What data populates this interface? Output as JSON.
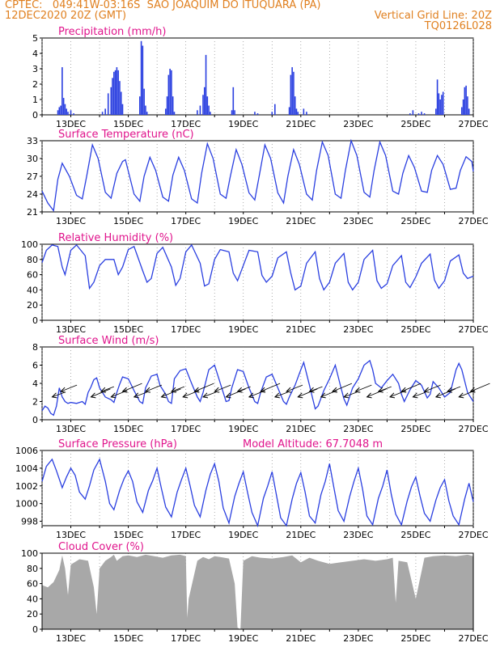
{
  "header": {
    "line1_left": "CPTEC:   049:41W-03:16S  SAO JOAQUIM DO ITUQUARA (PA)",
    "line2_left": "12DEC2020 20Z (GMT)",
    "line2_right": "Vertical Grid Line: 20Z",
    "line3_right": "TQ0126L028"
  },
  "colors": {
    "title": "#e0148c",
    "header": "#e08020",
    "line": "#2a3fe0",
    "cloud": "#a8a8a8"
  },
  "chart_data": [
    {
      "id": "precip",
      "type": "bar",
      "title": "Precipitation (mm/h)",
      "xlabel": "",
      "ylabel": "",
      "xlim": [
        12,
        27
      ],
      "ylim": [
        0,
        5
      ],
      "yticks": [
        0,
        1,
        2,
        3,
        4,
        5
      ],
      "xticks": [
        "13DEC",
        "15DEC",
        "17DEC",
        "19DEC",
        "21DEC",
        "23DEC",
        "25DEC",
        "27DEC"
      ],
      "x": [
        12.55,
        12.6,
        12.65,
        12.7,
        12.75,
        12.8,
        12.85,
        12.9,
        13.0,
        13.1,
        14.1,
        14.2,
        14.3,
        14.4,
        14.45,
        14.5,
        14.55,
        14.6,
        14.65,
        14.7,
        14.75,
        14.8,
        15.4,
        15.45,
        15.5,
        15.55,
        15.6,
        15.65,
        16.3,
        16.35,
        16.4,
        16.45,
        16.5,
        16.55,
        16.6,
        17.4,
        17.5,
        17.6,
        17.65,
        17.7,
        17.75,
        17.8,
        17.85,
        18.6,
        18.65,
        18.7,
        19.4,
        19.5,
        20.0,
        20.1,
        20.6,
        20.65,
        20.7,
        20.75,
        20.8,
        20.85,
        20.9,
        21.1,
        21.2,
        24.8,
        24.9,
        25.1,
        25.2,
        25.3,
        25.7,
        25.75,
        25.8,
        25.85,
        25.9,
        25.95,
        26.6,
        26.65,
        26.7,
        26.75,
        26.8,
        26.85
      ],
      "values": [
        0.3,
        0.5,
        0.6,
        3.1,
        1.1,
        0.7,
        0.4,
        0.2,
        0.3,
        0.1,
        0.2,
        0.4,
        1.4,
        1.8,
        2.4,
        2.8,
        2.9,
        3.1,
        2.9,
        2.2,
        1.5,
        0.7,
        1.2,
        4.8,
        4.5,
        1.7,
        0.6,
        0.2,
        0.4,
        1.2,
        2.6,
        3.0,
        2.9,
        1.2,
        0.2,
        0.3,
        0.6,
        1.3,
        1.8,
        3.9,
        1.2,
        0.6,
        0.2,
        0.3,
        1.8,
        0.3,
        0.2,
        0.1,
        0.2,
        0.7,
        0.5,
        2.6,
        3.1,
        2.8,
        1.2,
        0.4,
        0.2,
        0.4,
        0.2,
        0.1,
        0.3,
        0.1,
        0.2,
        0.1,
        0.4,
        2.3,
        1.4,
        1.0,
        1.3,
        1.5,
        0.5,
        1.0,
        1.8,
        1.9,
        1.2,
        0.4
      ]
    },
    {
      "id": "temp",
      "type": "line",
      "title": "Surface Temperature (nC)",
      "xlim": [
        12,
        27
      ],
      "ylim": [
        21,
        33
      ],
      "yticks": [
        21,
        24,
        27,
        30,
        33
      ],
      "xticks": [
        "13DEC",
        "15DEC",
        "17DEC",
        "19DEC",
        "21DEC",
        "23DEC",
        "25DEC",
        "27DEC"
      ],
      "x": [
        12.0,
        12.2,
        12.4,
        12.55,
        12.7,
        12.95,
        13.2,
        13.4,
        13.55,
        13.75,
        13.95,
        14.2,
        14.4,
        14.6,
        14.8,
        14.9,
        15.2,
        15.4,
        15.55,
        15.75,
        15.95,
        16.2,
        16.4,
        16.55,
        16.75,
        16.95,
        17.2,
        17.4,
        17.55,
        17.75,
        17.95,
        18.2,
        18.4,
        18.55,
        18.75,
        18.95,
        19.2,
        19.4,
        19.55,
        19.75,
        19.95,
        20.2,
        20.4,
        20.55,
        20.75,
        20.95,
        21.2,
        21.4,
        21.55,
        21.75,
        21.95,
        22.2,
        22.4,
        22.55,
        22.75,
        22.95,
        23.2,
        23.4,
        23.55,
        23.75,
        23.95,
        24.2,
        24.4,
        24.55,
        24.75,
        24.95,
        25.2,
        25.4,
        25.55,
        25.75,
        25.95,
        26.2,
        26.4,
        26.55,
        26.75,
        26.95,
        27.0
      ],
      "values": [
        24.5,
        22.5,
        21.2,
        26.5,
        29.2,
        27.0,
        23.8,
        23.2,
        27.0,
        32.3,
        30.0,
        24.3,
        23.3,
        27.5,
        29.5,
        29.8,
        24.0,
        22.8,
        27.0,
        30.2,
        28.0,
        23.5,
        22.8,
        27.2,
        30.2,
        28.0,
        23.2,
        22.5,
        27.5,
        32.5,
        30.0,
        24.0,
        23.3,
        27.0,
        31.5,
        29.0,
        24.2,
        23.0,
        27.0,
        32.3,
        30.0,
        24.2,
        22.5,
        27.0,
        31.5,
        29.0,
        24.0,
        23.0,
        28.0,
        32.8,
        30.5,
        24.0,
        23.3,
        28.0,
        33.0,
        30.5,
        24.3,
        23.5,
        28.0,
        32.8,
        30.5,
        24.5,
        24.0,
        27.5,
        30.5,
        28.5,
        24.5,
        24.3,
        28.0,
        30.5,
        29.0,
        24.8,
        25.0,
        28.0,
        30.3,
        29.5,
        27.8
      ]
    },
    {
      "id": "rh",
      "type": "line",
      "title": "Relative Humidity (%)",
      "xlim": [
        12,
        27
      ],
      "ylim": [
        0,
        100
      ],
      "yticks": [
        0,
        20,
        40,
        60,
        80,
        100
      ],
      "xticks": [
        "13DEC",
        "15DEC",
        "17DEC",
        "19DEC",
        "21DEC",
        "23DEC",
        "25DEC",
        "27DEC"
      ],
      "x": [
        12.0,
        12.15,
        12.35,
        12.55,
        12.7,
        12.8,
        13.0,
        13.2,
        13.5,
        13.65,
        13.8,
        14.0,
        14.2,
        14.5,
        14.65,
        14.8,
        15.0,
        15.2,
        15.5,
        15.65,
        15.8,
        16.0,
        16.2,
        16.5,
        16.65,
        16.8,
        17.0,
        17.2,
        17.5,
        17.65,
        17.8,
        18.0,
        18.2,
        18.5,
        18.65,
        18.8,
        19.0,
        19.2,
        19.5,
        19.65,
        19.8,
        20.0,
        20.2,
        20.5,
        20.65,
        20.8,
        21.0,
        21.2,
        21.5,
        21.65,
        21.8,
        22.0,
        22.2,
        22.5,
        22.65,
        22.8,
        23.0,
        23.2,
        23.5,
        23.65,
        23.8,
        24.0,
        24.2,
        24.5,
        24.65,
        24.8,
        25.0,
        25.2,
        25.5,
        25.65,
        25.8,
        26.0,
        26.2,
        26.5,
        26.65,
        26.8,
        27.0
      ],
      "values": [
        76,
        92,
        99,
        97,
        70,
        60,
        92,
        99,
        85,
        42,
        50,
        72,
        80,
        80,
        60,
        70,
        93,
        97,
        65,
        50,
        55,
        88,
        96,
        70,
        46,
        55,
        90,
        99,
        75,
        45,
        48,
        80,
        93,
        90,
        62,
        52,
        72,
        92,
        90,
        59,
        50,
        58,
        82,
        90,
        62,
        40,
        45,
        75,
        90,
        55,
        40,
        50,
        75,
        88,
        50,
        40,
        50,
        80,
        92,
        52,
        42,
        48,
        72,
        85,
        50,
        43,
        57,
        75,
        87,
        53,
        42,
        52,
        78,
        86,
        62,
        55,
        58
      ]
    },
    {
      "id": "wind",
      "type": "line",
      "title": "Surface Wind (m/s)",
      "xlim": [
        12,
        27
      ],
      "ylim": [
        0,
        8
      ],
      "yticks": [
        0,
        2,
        4,
        6,
        8
      ],
      "xticks": [
        "13DEC",
        "15DEC",
        "17DEC",
        "19DEC",
        "21DEC",
        "23DEC",
        "25DEC",
        "27DEC"
      ],
      "x": [
        12.0,
        12.1,
        12.2,
        12.3,
        12.4,
        12.5,
        12.6,
        12.7,
        12.8,
        12.9,
        13.0,
        13.2,
        13.4,
        13.5,
        13.6,
        13.7,
        13.8,
        13.9,
        14.0,
        14.2,
        14.4,
        14.5,
        14.6,
        14.7,
        14.8,
        15.0,
        15.2,
        15.4,
        15.5,
        15.6,
        15.8,
        16.0,
        16.1,
        16.3,
        16.4,
        16.5,
        16.6,
        16.8,
        17.0,
        17.2,
        17.4,
        17.5,
        17.6,
        17.8,
        18.0,
        18.1,
        18.3,
        18.4,
        18.5,
        18.6,
        18.8,
        19.0,
        19.2,
        19.4,
        19.5,
        19.6,
        19.8,
        20.0,
        20.2,
        20.4,
        20.5,
        20.6,
        20.8,
        21.0,
        21.1,
        21.3,
        21.4,
        21.5,
        21.6,
        21.8,
        22.0,
        22.2,
        22.4,
        22.5,
        22.6,
        22.8,
        23.0,
        23.2,
        23.4,
        23.5,
        23.6,
        23.8,
        24.0,
        24.2,
        24.4,
        24.5,
        24.6,
        24.8,
        25.0,
        25.2,
        25.4,
        25.5,
        25.6,
        25.8,
        26.0,
        26.2,
        26.4,
        26.5,
        26.6,
        26.8,
        27.0
      ],
      "values": [
        1.0,
        1.5,
        1.3,
        0.7,
        0.5,
        1.5,
        3.5,
        2.5,
        2.0,
        1.8,
        1.9,
        1.8,
        2.0,
        1.7,
        3.0,
        3.6,
        4.4,
        4.6,
        3.5,
        2.5,
        2.2,
        1.9,
        3.0,
        3.9,
        4.7,
        4.5,
        3.2,
        2.0,
        1.8,
        3.5,
        4.8,
        5.0,
        3.8,
        2.8,
        2.0,
        1.8,
        4.5,
        5.4,
        5.6,
        4.0,
        2.5,
        2.0,
        3.0,
        5.5,
        6.0,
        5.0,
        3.0,
        2.0,
        2.1,
        3.5,
        5.5,
        5.3,
        3.5,
        2.0,
        1.8,
        3.0,
        4.7,
        5.0,
        3.5,
        2.0,
        1.7,
        2.5,
        3.8,
        5.5,
        6.3,
        3.8,
        2.5,
        1.2,
        1.5,
        3.2,
        4.5,
        6.0,
        3.5,
        2.3,
        1.6,
        3.5,
        4.5,
        6.0,
        6.5,
        5.5,
        4.0,
        3.5,
        4.3,
        5.0,
        4.0,
        2.8,
        2.0,
        3.3,
        4.3,
        3.8,
        2.4,
        2.8,
        4.2,
        3.5,
        2.5,
        3.0,
        5.5,
        6.2,
        5.5,
        3.0,
        2.0
      ],
      "arrows_direction": "from the east-northeast (pointing west-southwest)"
    },
    {
      "id": "pres",
      "type": "line",
      "title": "Surface Pressure (hPa)",
      "annotation": "Model Altitude: 67.7048 m",
      "xlim": [
        12,
        27
      ],
      "ylim": [
        997.5,
        1006
      ],
      "yticks": [
        998,
        1000,
        1002,
        1004,
        1006
      ],
      "xticks": [
        "13DEC",
        "15DEC",
        "17DEC",
        "19DEC",
        "21DEC",
        "23DEC",
        "25DEC",
        "27DEC"
      ],
      "x": [
        12.0,
        12.15,
        12.35,
        12.5,
        12.7,
        12.85,
        13.0,
        13.15,
        13.3,
        13.5,
        13.65,
        13.8,
        14.0,
        14.2,
        14.35,
        14.5,
        14.7,
        14.85,
        15.0,
        15.15,
        15.3,
        15.5,
        15.7,
        15.85,
        16.0,
        16.15,
        16.3,
        16.5,
        16.7,
        16.85,
        17.0,
        17.15,
        17.3,
        17.5,
        17.7,
        17.85,
        18.0,
        18.15,
        18.3,
        18.5,
        18.7,
        18.85,
        19.0,
        19.15,
        19.3,
        19.5,
        19.7,
        19.85,
        20.0,
        20.15,
        20.3,
        20.5,
        20.7,
        20.85,
        21.0,
        21.15,
        21.3,
        21.5,
        21.7,
        21.85,
        22.0,
        22.15,
        22.3,
        22.5,
        22.7,
        22.85,
        23.0,
        23.15,
        23.3,
        23.5,
        23.7,
        23.85,
        24.0,
        24.15,
        24.3,
        24.5,
        24.7,
        24.85,
        25.0,
        25.15,
        25.3,
        25.5,
        25.7,
        25.85,
        26.0,
        26.15,
        26.3,
        26.5,
        26.7,
        26.85,
        27.0
      ],
      "values": [
        1002.5,
        1004.2,
        1005.0,
        1003.7,
        1001.8,
        1003.0,
        1004.0,
        1003.2,
        1001.3,
        1000.5,
        1002.0,
        1003.8,
        1005.0,
        1002.5,
        1000.0,
        999.3,
        1001.5,
        1002.8,
        1003.7,
        1002.5,
        1000.2,
        999.0,
        1001.5,
        1002.6,
        1004.0,
        1001.7,
        999.6,
        998.5,
        1001.3,
        1002.7,
        1004.0,
        1002.0,
        999.8,
        998.5,
        1001.5,
        1003.3,
        1004.5,
        1002.5,
        999.5,
        997.8,
        1000.8,
        1002.3,
        1003.6,
        1001.2,
        999.0,
        997.5,
        1000.6,
        1002.0,
        1003.6,
        1001.0,
        998.4,
        997.3,
        1000.5,
        1002.3,
        1003.5,
        1001.3,
        998.6,
        997.8,
        1001.0,
        1002.5,
        1004.5,
        1001.8,
        999.2,
        998.0,
        1000.8,
        1002.5,
        1004.0,
        1001.6,
        998.6,
        997.6,
        1000.6,
        1002.0,
        1003.8,
        1001.0,
        998.8,
        997.6,
        1000.3,
        1001.9,
        1003.0,
        1000.8,
        998.9,
        998.0,
        1000.4,
        1001.8,
        1002.7,
        1000.3,
        998.6,
        997.6,
        1000.5,
        1002.3,
        1000.2
      ]
    },
    {
      "id": "cloud",
      "type": "area",
      "title": "Cloud Cover (%)",
      "xlim": [
        12,
        27
      ],
      "ylim": [
        0,
        100
      ],
      "yticks": [
        0,
        20,
        40,
        60,
        80,
        100
      ],
      "xticks": [
        "13DEC",
        "15DEC",
        "17DEC",
        "19DEC",
        "21DEC",
        "23DEC",
        "25DEC",
        "27DEC"
      ],
      "x": [
        12.0,
        12.2,
        12.4,
        12.6,
        12.7,
        12.8,
        12.9,
        13.0,
        13.3,
        13.6,
        13.8,
        13.9,
        14.0,
        14.2,
        14.4,
        14.5,
        14.6,
        14.8,
        15.0,
        15.3,
        15.6,
        15.9,
        16.2,
        16.5,
        16.8,
        17.0,
        17.05,
        17.1,
        17.4,
        17.6,
        17.8,
        18.0,
        18.2,
        18.5,
        18.7,
        18.8,
        18.9,
        19.0,
        19.3,
        19.6,
        20.0,
        20.4,
        20.7,
        21.0,
        21.3,
        21.6,
        22.0,
        22.4,
        22.8,
        23.2,
        23.6,
        24.0,
        24.2,
        24.3,
        24.4,
        24.7,
        25.0,
        25.3,
        25.6,
        26.0,
        26.4,
        26.8,
        27.0
      ],
      "values": [
        58,
        55,
        62,
        78,
        97,
        80,
        45,
        85,
        92,
        90,
        55,
        20,
        80,
        90,
        95,
        98,
        90,
        96,
        97,
        95,
        98,
        96,
        94,
        97,
        98,
        96,
        15,
        40,
        90,
        95,
        92,
        96,
        95,
        93,
        60,
        2,
        0,
        90,
        96,
        94,
        93,
        95,
        97,
        88,
        94,
        90,
        86,
        88,
        90,
        92,
        90,
        92,
        94,
        35,
        90,
        88,
        40,
        94,
        96,
        97,
        96,
        98,
        96
      ]
    }
  ]
}
